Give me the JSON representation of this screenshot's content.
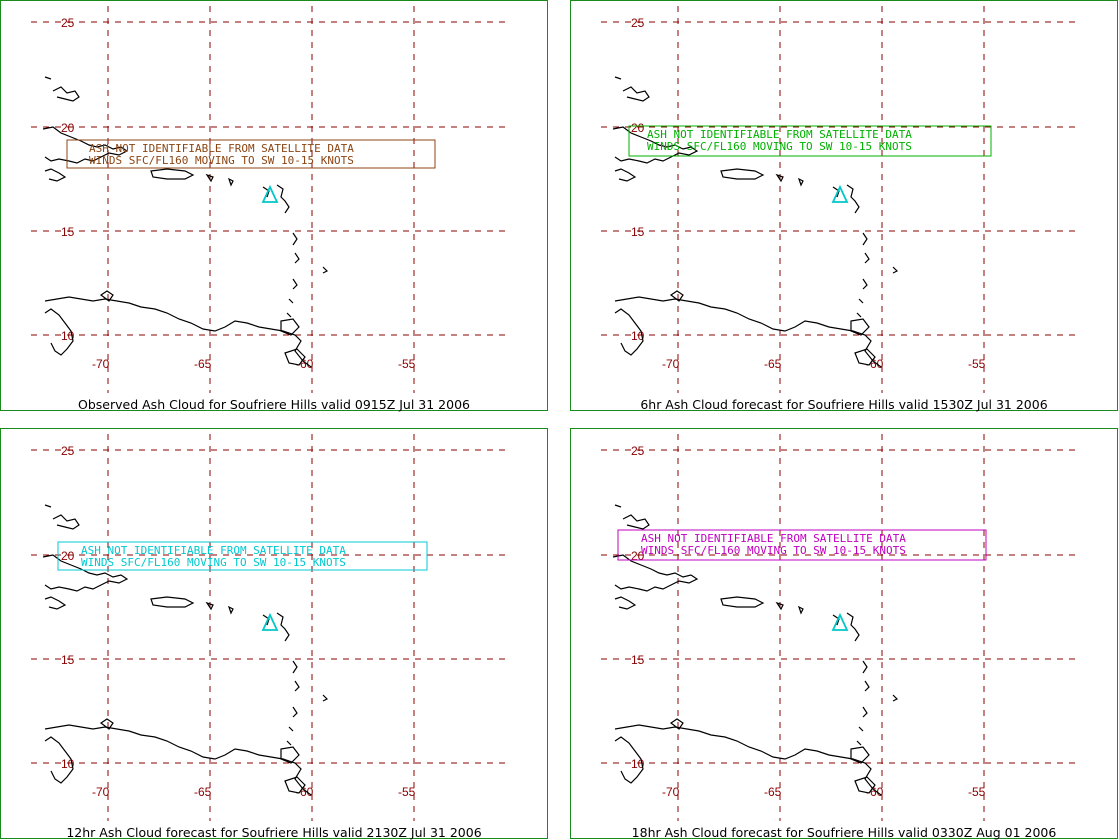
{
  "lat_labels": [
    "25",
    "20",
    "15",
    "10"
  ],
  "lon_labels": [
    "-70",
    "-65",
    "-60",
    "-55"
  ],
  "volcano_symbol": "triangle-marker",
  "colors": {
    "border": "#1a8a1a",
    "grid": "#8b0000",
    "volcano": "#00c8c8"
  },
  "panels": [
    {
      "caption": "Observed Ash Cloud for Soufriere  Hills valid 0915Z Jul 31 2006",
      "box_color": "#8b4513",
      "line1": "ASH NOT IDENTIFIABLE FROM SATELLITE DATA",
      "line2": "WINDS SFC/FL160 MOVING TO SW 10-15 KNOTS"
    },
    {
      "caption": "6hr Ash Cloud forecast for Soufriere  Hills valid 1530Z Jul 31 2006",
      "box_color": "#00b000",
      "line1": "ASH NOT IDENTIFIABLE FROM SATELLITE DATA",
      "line2": "WINDS SFC/FL160 MOVING TO SW 10-15 KNOTS"
    },
    {
      "caption": "12hr Ash Cloud forecast for Soufriere  Hills valid 2130Z Jul 31 2006",
      "box_color": "#00c8d0",
      "line1": "ASH NOT IDENTIFIABLE FROM SATELLITE DATA",
      "line2": "WINDS SFC/FL160 MOVING TO SW 10-15 KNOTS"
    },
    {
      "caption": "18hr Ash Cloud forecast for Soufriere  Hills valid 0330Z Aug 01 2006",
      "box_color": "#c000c0",
      "line1": "ASH NOT IDENTIFIABLE FROM SATELLITE DATA",
      "line2": "WINDS SFC/FL160 MOVING TO SW 10-15 KNOTS"
    }
  ]
}
